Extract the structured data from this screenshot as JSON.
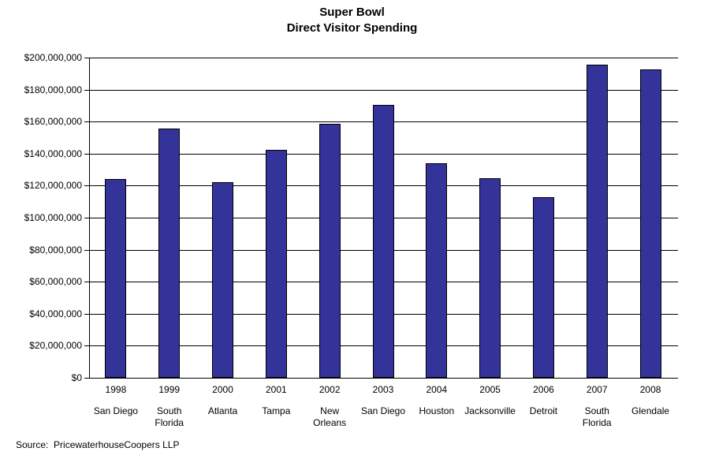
{
  "chart_data": {
    "type": "bar",
    "title_lines": [
      "Super Bowl",
      "Direct Visitor Spending"
    ],
    "categories": [
      "1998",
      "1999",
      "2000",
      "2001",
      "2002",
      "2003",
      "2004",
      "2005",
      "2006",
      "2007",
      "2008"
    ],
    "category_cities": [
      "San Diego",
      "South Florida",
      "Atlanta",
      "Tampa",
      "New Orleans",
      "San Diego",
      "Houston",
      "Jacksonville",
      "Detroit",
      "South Florida",
      "Glendale"
    ],
    "city_label_lines": [
      [
        "San Diego"
      ],
      [
        "South",
        "Florida"
      ],
      [
        "Atlanta"
      ],
      [
        "Tampa"
      ],
      [
        "New",
        "Orleans"
      ],
      [
        "San Diego"
      ],
      [
        "Houston"
      ],
      [
        "Jacksonville"
      ],
      [
        "Detroit"
      ],
      [
        "South",
        "Florida"
      ],
      [
        "Glendale"
      ]
    ],
    "values": [
      124000000,
      155500000,
      122000000,
      142500000,
      158500000,
      170500000,
      134000000,
      124500000,
      113000000,
      195500000,
      192500000
    ],
    "xlabel": "",
    "ylabel": "",
    "ylim": [
      0,
      200000000
    ],
    "y_tick_step": 20000000,
    "y_tick_labels": [
      "$0",
      "$20,000,000",
      "$40,000,000",
      "$60,000,000",
      "$80,000,000",
      "$100,000,000",
      "$120,000,000",
      "$140,000,000",
      "$160,000,000",
      "$180,000,000",
      "$200,000,000"
    ],
    "grid": true,
    "legend": "none",
    "bar_color": "#333399",
    "bar_border_color": "#000000",
    "source": "Source:  PricewaterhouseCoopers LLP"
  }
}
